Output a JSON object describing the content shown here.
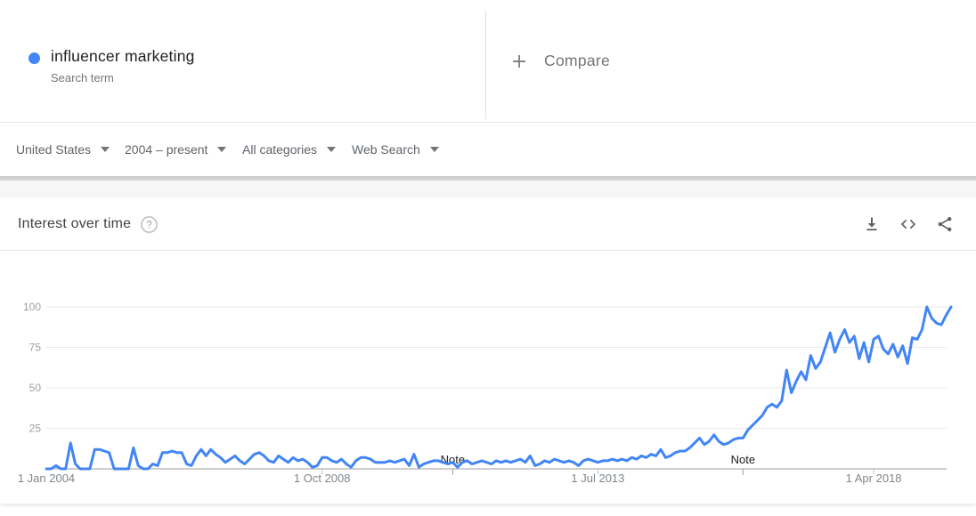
{
  "term_card": {
    "term": "influencer marketing",
    "subtitle": "Search term",
    "dot_color": "#4285f4",
    "compare_label": "Compare",
    "plus_icon": "plus-icon"
  },
  "filters": [
    {
      "label": "United States"
    },
    {
      "label": "2004 – present"
    },
    {
      "label": "All categories"
    },
    {
      "label": "Web Search"
    }
  ],
  "chart_section": {
    "title": "Interest over time",
    "help_glyph": "?",
    "actions": [
      "download-icon",
      "embed-icon",
      "share-icon"
    ]
  },
  "chart_data": {
    "type": "line",
    "title": "Interest over time",
    "series": [
      {
        "name": "influencer marketing",
        "color": "#4285f4",
        "start": "2004-01",
        "interval": "month",
        "values": [
          0,
          0,
          2,
          0,
          0,
          16,
          3,
          0,
          0,
          0,
          12,
          12,
          11,
          10,
          0,
          0,
          0,
          0,
          13,
          2,
          0,
          0,
          3,
          2,
          10,
          10,
          11,
          10,
          10,
          3,
          2,
          8,
          12,
          8,
          12,
          9,
          7,
          4,
          6,
          8,
          5,
          3,
          6,
          9,
          10,
          8,
          5,
          4,
          8,
          6,
          4,
          7,
          5,
          6,
          4,
          1,
          2,
          7,
          7,
          5,
          4,
          6,
          3,
          1,
          5,
          7,
          7,
          6,
          4,
          4,
          4,
          5,
          4,
          5,
          6,
          2,
          9,
          1,
          3,
          4,
          5,
          5,
          4,
          3,
          4,
          1,
          4,
          5,
          3,
          4,
          5,
          4,
          3,
          5,
          4,
          5,
          4,
          5,
          6,
          4,
          8,
          2,
          3,
          5,
          4,
          6,
          5,
          4,
          5,
          4,
          2,
          5,
          6,
          5,
          4,
          5,
          5,
          6,
          5,
          6,
          5,
          7,
          6,
          8,
          7,
          9,
          8,
          12,
          7,
          8,
          10,
          11,
          11,
          13,
          16,
          19,
          15,
          17,
          21,
          17,
          15,
          16,
          18,
          19,
          19,
          24,
          27,
          30,
          33,
          38,
          40,
          38,
          42,
          61,
          47,
          54,
          60,
          55,
          70,
          62,
          66,
          75,
          84,
          72,
          80,
          86,
          78,
          82,
          68,
          78,
          66,
          80,
          82,
          74,
          71,
          77,
          69,
          76,
          65,
          81,
          80,
          86,
          100,
          93,
          90,
          89,
          95,
          100
        ]
      }
    ],
    "ylim": [
      0,
      100
    ],
    "y_ticks": [
      100,
      75,
      50,
      25
    ],
    "x_tick_labels": [
      "1 Jan 2004",
      "1 Oct 2008",
      "1 Jul 2013",
      "1 Apr 2018"
    ],
    "x_tick_positions_months": [
      0,
      57,
      114,
      171
    ],
    "grid": true,
    "legend": "none",
    "notes": [
      {
        "label": "Note",
        "month_index": 84
      },
      {
        "label": "Note",
        "month_index": 144
      }
    ],
    "colors": {
      "line": "#4285f4",
      "grid": "#e9e9e9",
      "axis": "#9e9e9e",
      "y_label": "#9aa0a6",
      "x_label": "#80868b",
      "note_text": "#202124",
      "tick": "#bdbdbd"
    }
  }
}
